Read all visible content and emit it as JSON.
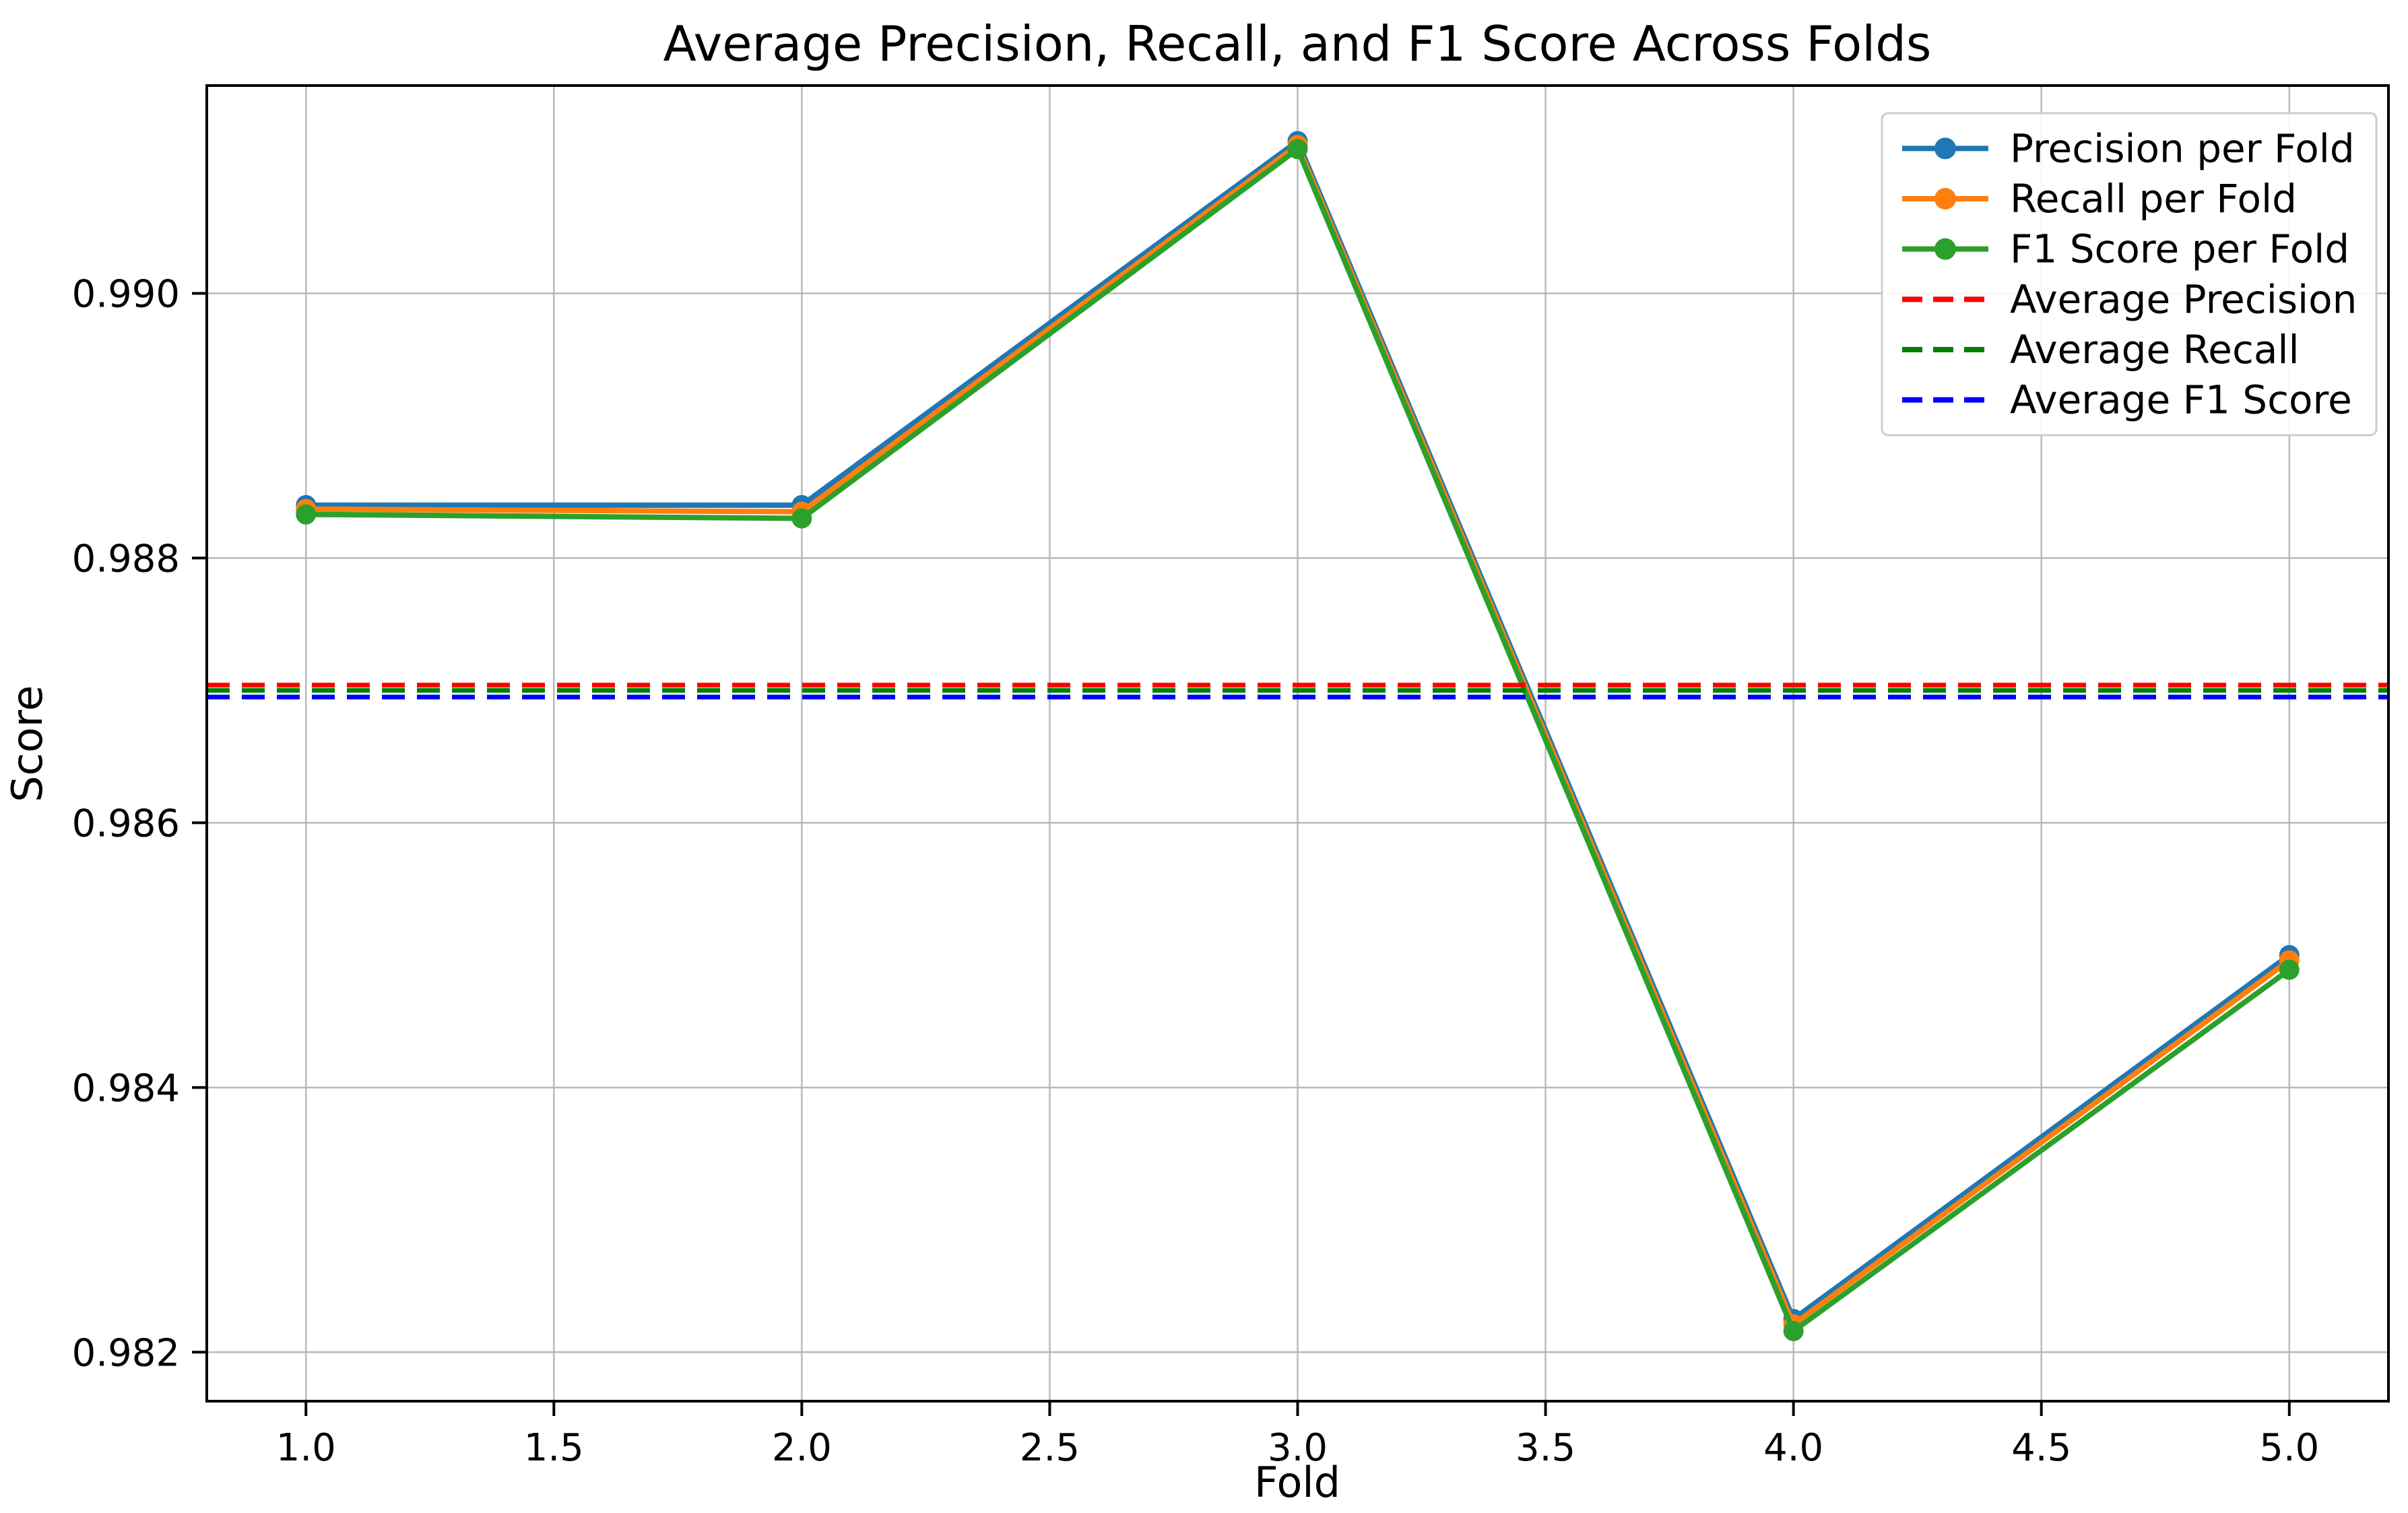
{
  "figure": {
    "background": "#ffffff"
  },
  "chart_data": {
    "type": "line",
    "title": "Average Precision, Recall, and F1 Score Across Folds",
    "xlabel": "Fold",
    "ylabel": "Score",
    "grid": true,
    "legend_position": "upper right",
    "xlim": [
      0.8,
      5.2
    ],
    "ylim": [
      0.98163,
      0.99157
    ],
    "x": [
      1,
      2,
      3,
      4,
      5
    ],
    "x_ticks": [
      {
        "value": 1.0,
        "label": "1.0"
      },
      {
        "value": 1.5,
        "label": "1.5"
      },
      {
        "value": 2.0,
        "label": "2.0"
      },
      {
        "value": 2.5,
        "label": "2.5"
      },
      {
        "value": 3.0,
        "label": "3.0"
      },
      {
        "value": 3.5,
        "label": "3.5"
      },
      {
        "value": 4.0,
        "label": "4.0"
      },
      {
        "value": 4.5,
        "label": "4.5"
      },
      {
        "value": 5.0,
        "label": "5.0"
      }
    ],
    "y_ticks": [
      {
        "value": 0.982,
        "label": "0.982"
      },
      {
        "value": 0.984,
        "label": "0.984"
      },
      {
        "value": 0.986,
        "label": "0.986"
      },
      {
        "value": 0.988,
        "label": "0.988"
      },
      {
        "value": 0.99,
        "label": "0.990"
      }
    ],
    "series": [
      {
        "name": "Precision per Fold",
        "color": "#1f77b4",
        "line_style": "solid",
        "marker": "circle",
        "values": [
          0.9884,
          0.9884,
          0.99115,
          0.98225,
          0.985
        ]
      },
      {
        "name": "Recall per Fold",
        "color": "#ff7f0e",
        "line_style": "solid",
        "marker": "circle",
        "values": [
          0.98837,
          0.98835,
          0.99112,
          0.98221,
          0.98496
        ]
      },
      {
        "name": "F1 Score per Fold",
        "color": "#2ca02c",
        "line_style": "solid",
        "marker": "circle",
        "values": [
          0.98833,
          0.9883,
          0.99109,
          0.98216,
          0.98489
        ]
      }
    ],
    "average_lines": [
      {
        "name": "Average Precision",
        "color": "#ff0000",
        "line_style": "dashed",
        "value": 0.98704
      },
      {
        "name": "Average Recall",
        "color": "#008000",
        "line_style": "dashed",
        "value": 0.987
      },
      {
        "name": "Average F1 Score",
        "color": "#0000ff",
        "line_style": "dashed",
        "value": 0.98695
      }
    ],
    "colors": {
      "grid": "#b9b9b9",
      "spine": "#000000",
      "text": "#000000",
      "legend_border": "#cccccc",
      "legend_background": "#ffffff"
    }
  }
}
